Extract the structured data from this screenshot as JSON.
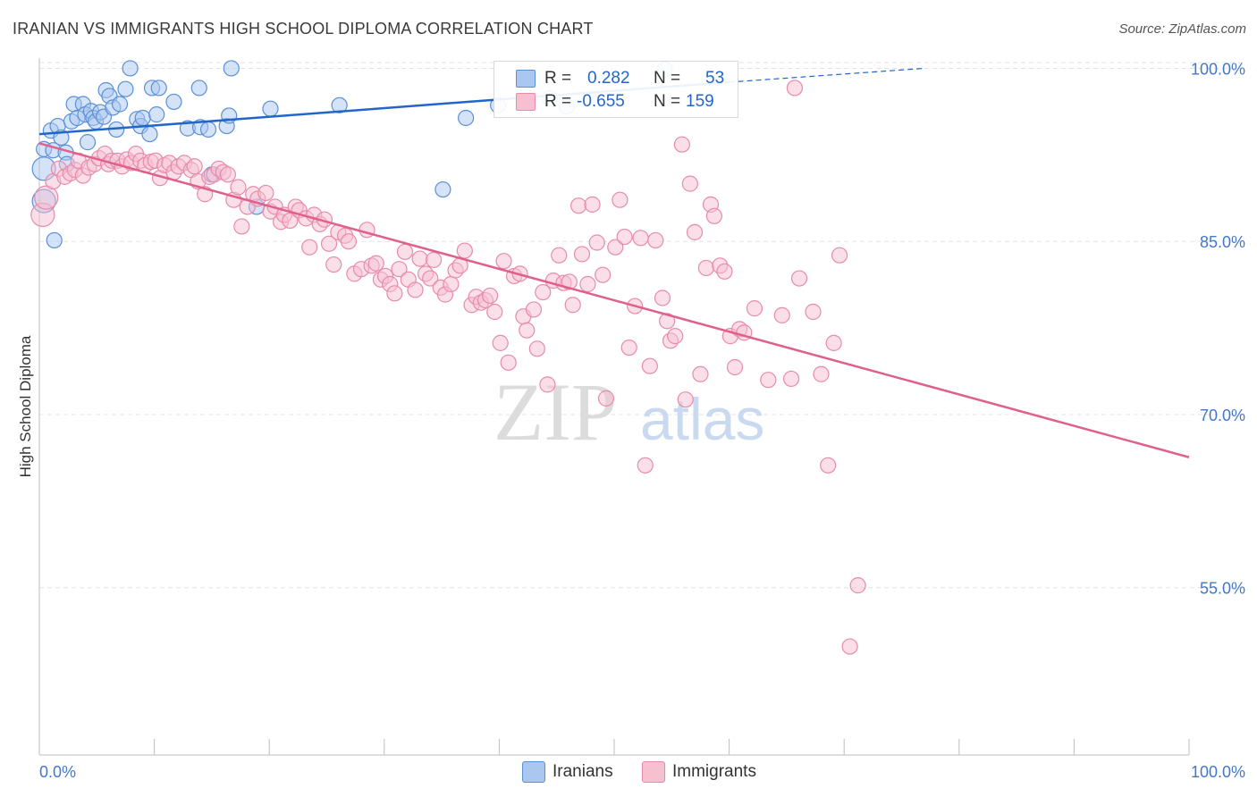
{
  "title": "IRANIAN VS IMMIGRANTS HIGH SCHOOL DIPLOMA CORRELATION CHART",
  "source": "Source: ZipAtlas.com",
  "colors": {
    "iranians_fill": "#aac8ef",
    "iranians_stroke": "#5b8fd6",
    "iranians_line": "#2266cc",
    "immigrants_fill": "#f6c0d1",
    "immigrants_stroke": "#e88aaa",
    "immigrants_line": "#e0608d",
    "axis_text": "#4477cc",
    "grid": "#e3e3e3"
  },
  "stats": {
    "iranians": {
      "r_label": "R =",
      "r_value": "0.282",
      "n_label": "N =",
      "n_value": "53"
    },
    "immigrants": {
      "r_label": "R =",
      "r_value": "-0.655",
      "n_label": "N =",
      "n_value": "159"
    }
  },
  "watermark": {
    "zip": "ZIP",
    "atlas": "atlas"
  },
  "chart_data": {
    "type": "scatter",
    "ylabel": "High School Diploma",
    "xlabel": "",
    "xlim": [
      0,
      100
    ],
    "ylim": [
      40.5,
      100.5
    ],
    "x_tick_labels": [
      "0.0%",
      "100.0%"
    ],
    "y_ticks": [
      55,
      70,
      85,
      100
    ],
    "y_tick_labels": [
      "55.0%",
      "70.0%",
      "85.0%",
      "100.0%"
    ],
    "grid": true,
    "legend_position": "bottom-center",
    "legend": [
      "Iranians",
      "Immigrants"
    ],
    "series": [
      {
        "name": "Iranians",
        "trend": {
          "x": [
            0,
            60
          ],
          "y": [
            94.3,
            98.8
          ],
          "dashed_to": {
            "x": 77,
            "y": 100.0
          }
        },
        "points": [
          [
            0.4,
            93.0
          ],
          [
            0.4,
            91.3
          ],
          [
            0.4,
            88.5
          ],
          [
            1.0,
            94.6
          ],
          [
            1.2,
            92.9
          ],
          [
            1.3,
            85.1
          ],
          [
            1.6,
            95.0
          ],
          [
            1.9,
            94.0
          ],
          [
            2.3,
            92.7
          ],
          [
            2.4,
            91.7
          ],
          [
            2.8,
            95.4
          ],
          [
            3.0,
            96.9
          ],
          [
            3.3,
            95.7
          ],
          [
            3.8,
            96.9
          ],
          [
            4.0,
            96.0
          ],
          [
            4.2,
            93.6
          ],
          [
            4.5,
            96.3
          ],
          [
            4.7,
            95.7
          ],
          [
            4.9,
            95.4
          ],
          [
            5.3,
            96.2
          ],
          [
            5.6,
            95.8
          ],
          [
            5.8,
            98.1
          ],
          [
            6.1,
            97.6
          ],
          [
            6.4,
            96.6
          ],
          [
            6.7,
            94.7
          ],
          [
            7.0,
            96.9
          ],
          [
            7.5,
            98.2
          ],
          [
            7.9,
            100.0
          ],
          [
            8.5,
            95.6
          ],
          [
            8.8,
            95.0
          ],
          [
            9.0,
            95.7
          ],
          [
            9.6,
            94.3
          ],
          [
            9.8,
            98.3
          ],
          [
            10.2,
            96.0
          ],
          [
            10.4,
            98.3
          ],
          [
            11.7,
            97.1
          ],
          [
            12.9,
            94.8
          ],
          [
            13.9,
            98.3
          ],
          [
            14.0,
            94.9
          ],
          [
            14.7,
            94.7
          ],
          [
            15.0,
            90.8
          ],
          [
            16.3,
            95.0
          ],
          [
            16.5,
            95.9
          ],
          [
            16.7,
            100.0
          ],
          [
            18.9,
            88.0
          ],
          [
            20.1,
            96.5
          ],
          [
            26.1,
            96.8
          ],
          [
            35.1,
            89.5
          ],
          [
            37.1,
            95.7
          ],
          [
            39.9,
            96.8
          ],
          [
            44.4,
            97.4
          ],
          [
            45.9,
            96.7
          ],
          [
            54.4,
            99.9
          ]
        ]
      },
      {
        "name": "Immigrants",
        "trend": {
          "x": [
            0,
            100
          ],
          "y": [
            93.5,
            66.3
          ]
        },
        "points": [
          [
            0.3,
            87.3
          ],
          [
            0.6,
            88.8
          ],
          [
            1.2,
            90.2
          ],
          [
            1.7,
            91.3
          ],
          [
            2.2,
            90.6
          ],
          [
            2.7,
            90.9
          ],
          [
            3.1,
            91.2
          ],
          [
            3.4,
            92.0
          ],
          [
            3.8,
            90.7
          ],
          [
            4.3,
            91.4
          ],
          [
            4.8,
            91.7
          ],
          [
            5.2,
            92.2
          ],
          [
            5.7,
            92.6
          ],
          [
            6.0,
            91.7
          ],
          [
            6.3,
            92.0
          ],
          [
            6.8,
            92.0
          ],
          [
            7.2,
            91.5
          ],
          [
            7.6,
            92.1
          ],
          [
            8.0,
            91.8
          ],
          [
            8.4,
            92.6
          ],
          [
            8.8,
            92.0
          ],
          [
            9.2,
            91.6
          ],
          [
            9.7,
            91.9
          ],
          [
            10.1,
            92.0
          ],
          [
            10.5,
            90.5
          ],
          [
            10.9,
            91.6
          ],
          [
            11.3,
            91.8
          ],
          [
            11.7,
            91.0
          ],
          [
            12.1,
            91.5
          ],
          [
            12.6,
            91.8
          ],
          [
            13.2,
            91.2
          ],
          [
            13.5,
            91.5
          ],
          [
            13.8,
            90.2
          ],
          [
            14.4,
            89.1
          ],
          [
            14.8,
            90.6
          ],
          [
            15.2,
            90.8
          ],
          [
            15.6,
            91.3
          ],
          [
            16.0,
            91.0
          ],
          [
            16.4,
            90.8
          ],
          [
            16.9,
            88.6
          ],
          [
            17.3,
            89.7
          ],
          [
            17.6,
            86.3
          ],
          [
            18.1,
            88.0
          ],
          [
            18.6,
            89.1
          ],
          [
            19.0,
            88.7
          ],
          [
            19.7,
            89.2
          ],
          [
            20.1,
            87.6
          ],
          [
            20.5,
            88.0
          ],
          [
            21.0,
            86.7
          ],
          [
            21.3,
            87.3
          ],
          [
            21.8,
            86.8
          ],
          [
            22.3,
            88.0
          ],
          [
            22.6,
            87.7
          ],
          [
            23.2,
            87.0
          ],
          [
            23.5,
            84.5
          ],
          [
            23.9,
            87.3
          ],
          [
            24.4,
            86.5
          ],
          [
            24.8,
            86.9
          ],
          [
            25.2,
            84.8
          ],
          [
            25.6,
            83.0
          ],
          [
            26.0,
            85.8
          ],
          [
            26.6,
            85.5
          ],
          [
            26.9,
            85.0
          ],
          [
            27.4,
            82.2
          ],
          [
            28.0,
            82.6
          ],
          [
            28.5,
            86.0
          ],
          [
            28.9,
            82.9
          ],
          [
            29.3,
            83.1
          ],
          [
            29.7,
            81.7
          ],
          [
            30.1,
            82.0
          ],
          [
            30.5,
            81.3
          ],
          [
            30.9,
            80.5
          ],
          [
            31.3,
            82.6
          ],
          [
            31.8,
            84.1
          ],
          [
            32.1,
            81.7
          ],
          [
            32.7,
            80.8
          ],
          [
            33.1,
            83.5
          ],
          [
            33.6,
            82.2
          ],
          [
            34.0,
            81.8
          ],
          [
            34.3,
            83.4
          ],
          [
            34.9,
            81.0
          ],
          [
            35.3,
            80.4
          ],
          [
            35.8,
            81.3
          ],
          [
            36.2,
            82.5
          ],
          [
            36.6,
            82.9
          ],
          [
            37.0,
            84.2
          ],
          [
            37.6,
            79.5
          ],
          [
            38.0,
            80.2
          ],
          [
            38.4,
            79.7
          ],
          [
            38.8,
            79.9
          ],
          [
            39.2,
            80.3
          ],
          [
            39.6,
            78.9
          ],
          [
            40.1,
            76.2
          ],
          [
            40.4,
            83.3
          ],
          [
            40.8,
            74.5
          ],
          [
            41.3,
            82.0
          ],
          [
            41.8,
            82.2
          ],
          [
            42.1,
            78.5
          ],
          [
            42.4,
            77.3
          ],
          [
            43.0,
            79.1
          ],
          [
            43.3,
            75.7
          ],
          [
            43.8,
            80.6
          ],
          [
            44.2,
            72.6
          ],
          [
            44.7,
            81.6
          ],
          [
            45.2,
            83.8
          ],
          [
            45.6,
            81.4
          ],
          [
            46.1,
            81.5
          ],
          [
            46.4,
            79.5
          ],
          [
            46.9,
            88.1
          ],
          [
            47.2,
            83.9
          ],
          [
            47.7,
            81.3
          ],
          [
            48.1,
            88.2
          ],
          [
            48.5,
            84.9
          ],
          [
            49.0,
            82.1
          ],
          [
            49.3,
            71.4
          ],
          [
            50.1,
            84.5
          ],
          [
            50.5,
            88.6
          ],
          [
            50.9,
            85.4
          ],
          [
            51.3,
            75.8
          ],
          [
            51.8,
            79.4
          ],
          [
            52.3,
            85.3
          ],
          [
            52.7,
            65.6
          ],
          [
            53.1,
            74.2
          ],
          [
            53.6,
            85.1
          ],
          [
            54.2,
            80.1
          ],
          [
            54.6,
            78.1
          ],
          [
            54.9,
            76.4
          ],
          [
            55.3,
            76.8
          ],
          [
            55.9,
            93.4
          ],
          [
            56.2,
            71.3
          ],
          [
            56.6,
            90.0
          ],
          [
            57.0,
            85.8
          ],
          [
            57.5,
            73.5
          ],
          [
            58.0,
            82.7
          ],
          [
            58.4,
            88.2
          ],
          [
            58.7,
            87.2
          ],
          [
            59.2,
            82.9
          ],
          [
            59.6,
            82.4
          ],
          [
            60.1,
            76.8
          ],
          [
            60.5,
            74.1
          ],
          [
            60.9,
            77.4
          ],
          [
            61.3,
            77.1
          ],
          [
            62.2,
            79.2
          ],
          [
            63.4,
            73.0
          ],
          [
            64.6,
            78.6
          ],
          [
            65.4,
            73.1
          ],
          [
            65.7,
            98.3
          ],
          [
            66.1,
            81.8
          ],
          [
            67.3,
            78.9
          ],
          [
            68.0,
            73.5
          ],
          [
            68.6,
            65.6
          ],
          [
            69.1,
            76.2
          ],
          [
            69.6,
            83.8
          ],
          [
            70.5,
            49.9
          ],
          [
            71.2,
            55.2
          ]
        ]
      }
    ]
  }
}
